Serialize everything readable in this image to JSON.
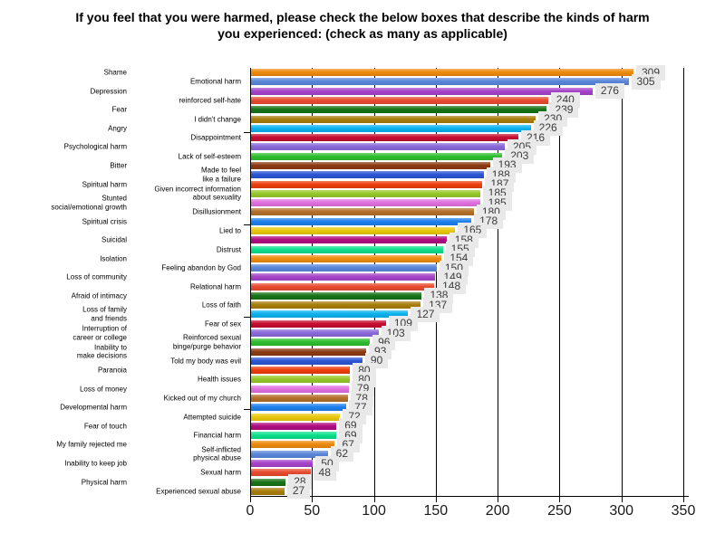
{
  "title": {
    "line1": "If you feel that you were harmed, please check the below boxes that describe the kinds of harm",
    "line2": "you experienced: (check as many as applicable)"
  },
  "chart_data": {
    "type": "bar",
    "orientation": "horizontal",
    "title": "If you feel that you were harmed, please check the below boxes that describe the kinds of harm you experienced: (check as many as applicable)",
    "xlabel": "",
    "ylabel": "",
    "xlim": [
      0,
      350
    ],
    "x_ticks": [
      0,
      50,
      100,
      150,
      200,
      250,
      300,
      350
    ],
    "grid": true,
    "value_labels_shown": true,
    "value_label_bg": "#e9e9e9",
    "axis_color": "#000000",
    "categories": [
      "Shame",
      "Emotional harm",
      "Depression",
      "reinforced self-hate",
      "Fear",
      "I didn't change",
      "Angry",
      "Disappointment",
      "Psychological harm",
      "Lack of self-esteem",
      "Bitter",
      "Made to feel\nlike a failure",
      "Spiritual harm",
      "Given incorrect information\nabout sexuality",
      "Stunted\nsocial/emotional growth",
      "Disillusionment",
      "Spiritual crisis",
      "Lied to",
      "Suicidal",
      "Distrust",
      "Isolation",
      "Feeling abandon by God",
      "Loss of community",
      "Relational harm",
      "Afraid of intimacy",
      "Loss of faith",
      "Loss of family\nand friends",
      "Fear of sex",
      "Interruption of\ncareer or college",
      "Reinforced sexual\nbinge/purge behavior",
      "Inability to\nmake decisions",
      "Told my body was evil",
      "Paranoia",
      "Health issues",
      "Loss of money",
      "Kicked out of my church",
      "Developmental harm",
      "Attempted suicide",
      "Fear of touch",
      "Financial harm",
      "My family rejected me",
      "Self-inflicted\nphysical abuse",
      "Inability to keep job",
      "Sexual harm",
      "Physical harm",
      "Experienced sexual abuse"
    ],
    "values": [
      309,
      305,
      276,
      240,
      239,
      230,
      226,
      216,
      205,
      203,
      193,
      188,
      187,
      185,
      185,
      180,
      178,
      165,
      158,
      155,
      154,
      150,
      149,
      148,
      138,
      137,
      127,
      109,
      103,
      96,
      93,
      90,
      80,
      80,
      79,
      78,
      77,
      72,
      69,
      69,
      67,
      62,
      50,
      48,
      28,
      27
    ],
    "bar_palette": [
      "#ee8a0e",
      "#5a87db",
      "#a643c9",
      "#e84c2f",
      "#177317",
      "#a87d0a",
      "#0bb2ef",
      "#c60c30",
      "#8a68da",
      "#2ebe2e",
      "#8c3a12",
      "#2b55d4",
      "#ee3d0c",
      "#97c929",
      "#e170e1",
      "#b4702a",
      "#1e80ee",
      "#eac90c",
      "#b00c80",
      "#0ce08c"
    ]
  }
}
